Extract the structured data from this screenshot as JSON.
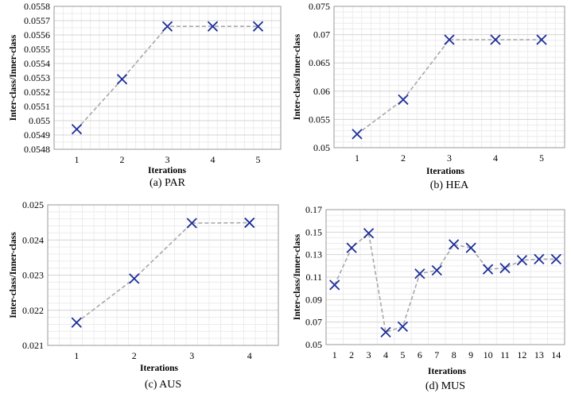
{
  "chart_data": [
    {
      "type": "line",
      "caption": "(a) PAR",
      "xlabel": "Iterations",
      "ylabel": "Inter-class/Inner-class",
      "x": [
        1,
        2,
        3,
        4,
        5
      ],
      "xticks": [
        "1",
        "2",
        "3",
        "4",
        "5"
      ],
      "yticks": [
        "0.0548",
        "0.0549",
        "0.055",
        "0.0551",
        "0.0552",
        "0.0553",
        "0.0554",
        "0.0555",
        "0.0556",
        "0.0557",
        "0.0558"
      ],
      "ylim": [
        0.0548,
        0.0558
      ],
      "xlim": [
        0.5,
        5.5
      ],
      "grid": true,
      "series": [
        {
          "values": [
            0.05494,
            0.05529,
            0.05566,
            0.05566,
            0.05566
          ]
        }
      ]
    },
    {
      "type": "line",
      "caption": "(b) HEA",
      "xlabel": "Iterations",
      "ylabel": "Inter-class/Inner-class",
      "x": [
        1,
        2,
        3,
        4,
        5
      ],
      "xticks": [
        "1",
        "2",
        "3",
        "4",
        "5"
      ],
      "yticks": [
        "0.05",
        "0.055",
        "0.06",
        "0.065",
        "0.07",
        "0.075"
      ],
      "ylim": [
        0.05,
        0.075
      ],
      "xlim": [
        0.5,
        5.5
      ],
      "grid": true,
      "series": [
        {
          "values": [
            0.0524,
            0.0585,
            0.0691,
            0.0691,
            0.0691
          ]
        }
      ]
    },
    {
      "type": "line",
      "caption": "(c) AUS",
      "xlabel": "Iterations",
      "ylabel": "Inter-class/Inner-class",
      "x": [
        1,
        2,
        3,
        4
      ],
      "xticks": [
        "1",
        "2",
        "3",
        "4"
      ],
      "yticks": [
        "0.021",
        "0.022",
        "0.023",
        "0.024",
        "0.025"
      ],
      "ylim": [
        0.021,
        0.025
      ],
      "xlim": [
        0.5,
        4.5
      ],
      "grid": true,
      "series": [
        {
          "values": [
            0.02165,
            0.0229,
            0.02448,
            0.02449
          ]
        }
      ]
    },
    {
      "type": "line",
      "caption": "(d) MUS",
      "xlabel": "Iterations",
      "ylabel": "Inter-class/Inner-class",
      "x": [
        1,
        2,
        3,
        4,
        5,
        6,
        7,
        8,
        9,
        10,
        11,
        12,
        13,
        14
      ],
      "xticks": [
        "1",
        "2",
        "3",
        "4",
        "5",
        "6",
        "7",
        "8",
        "9",
        "10",
        "11",
        "12",
        "13",
        "14"
      ],
      "yticks": [
        "0.05",
        "0.07",
        "0.09",
        "0.11",
        "0.13",
        "0.15",
        "0.17"
      ],
      "ylim": [
        0.05,
        0.17
      ],
      "xlim": [
        0.5,
        14.5
      ],
      "grid": true,
      "series": [
        {
          "values": [
            0.103,
            0.136,
            0.149,
            0.061,
            0.066,
            0.113,
            0.116,
            0.139,
            0.136,
            0.117,
            0.118,
            0.125,
            0.126,
            0.126
          ]
        }
      ]
    }
  ],
  "colors": {
    "marker": "#1c2e9a",
    "line": "#a8a8a8",
    "grid_major": "#d4d4d4",
    "grid_minor": "#ececec",
    "frame": "#9a9a9a"
  }
}
